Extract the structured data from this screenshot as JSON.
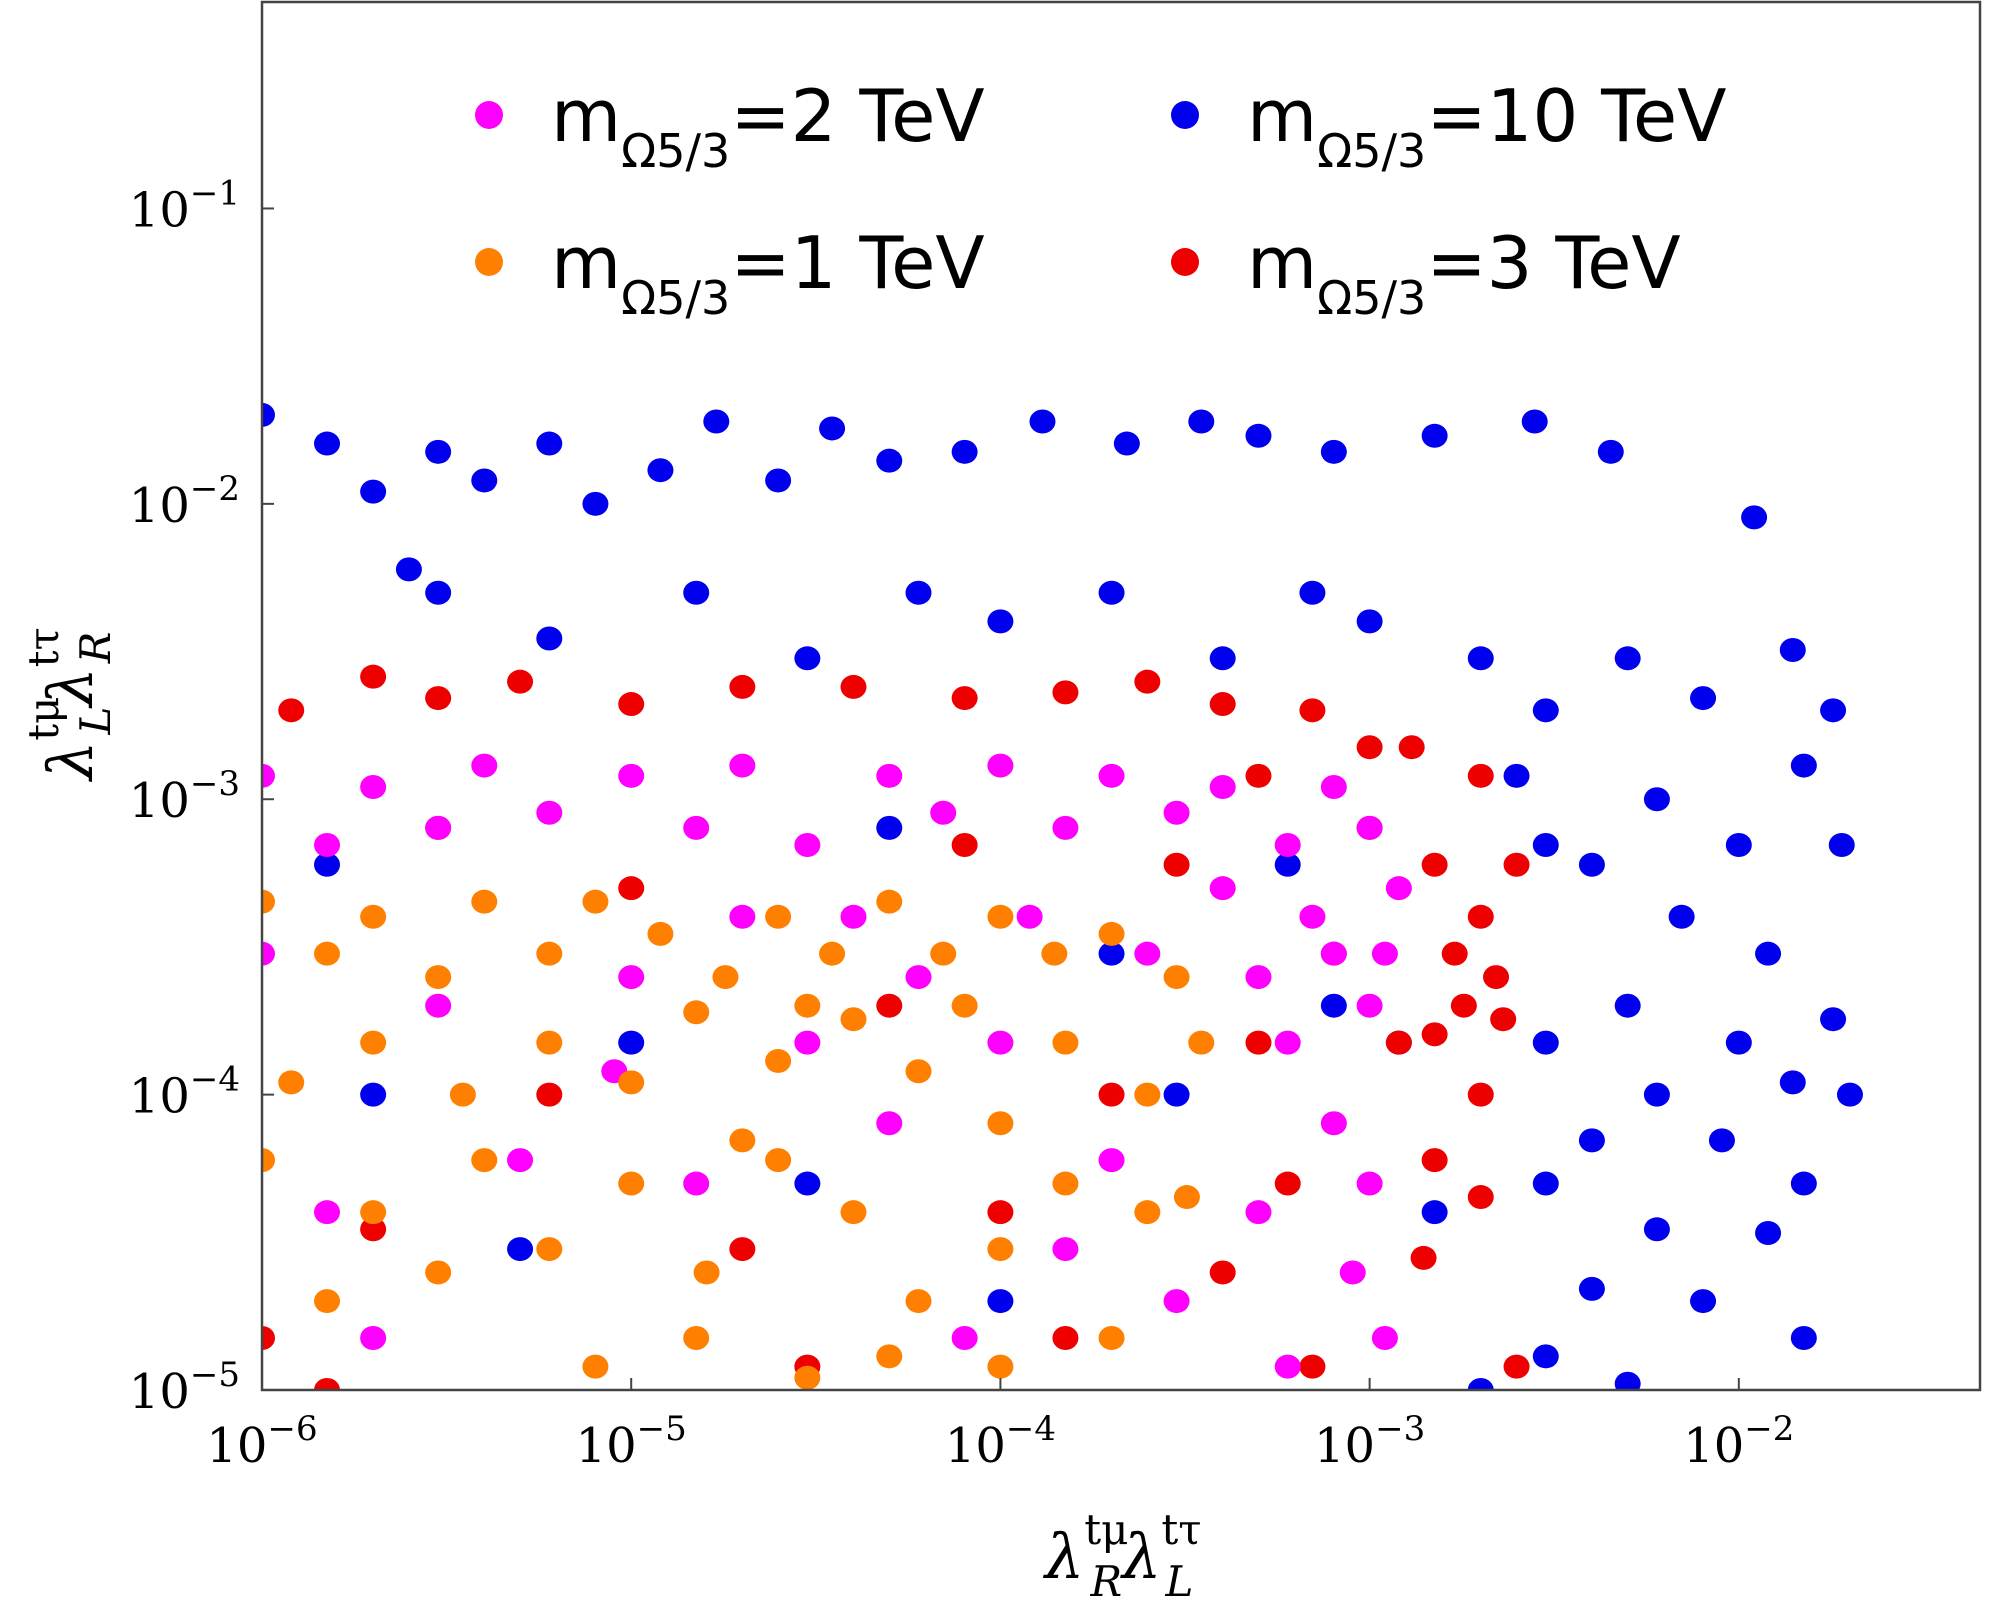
{
  "chart_data": {
    "type": "scatter",
    "xlabel": {
      "base": "λ",
      "sup1": "tμ",
      "sub1": "R",
      "base2": "λ",
      "sup2": "tτ",
      "sub2": "L"
    },
    "ylabel": {
      "base": "λ",
      "sup1": "tμ",
      "sub1": "L",
      "base2": "λ",
      "sup2": "tτ",
      "sub2": "R"
    },
    "xscale": "log",
    "yscale": "log",
    "xlim": [
      1e-06,
      0.045
    ],
    "ylim": [
      1e-05,
      0.5
    ],
    "xticks": [
      {
        "value": 1e-06,
        "base": "10",
        "exp": "−6"
      },
      {
        "value": 1e-05,
        "base": "10",
        "exp": "−5"
      },
      {
        "value": 0.0001,
        "base": "10",
        "exp": "−4"
      },
      {
        "value": 0.001,
        "base": "10",
        "exp": "−3"
      },
      {
        "value": 0.01,
        "base": "10",
        "exp": "−2"
      }
    ],
    "yticks": [
      {
        "value": 1e-05,
        "base": "10",
        "exp": "−5"
      },
      {
        "value": 0.0001,
        "base": "10",
        "exp": "−4"
      },
      {
        "value": 0.001,
        "base": "10",
        "exp": "−3"
      },
      {
        "value": 0.01,
        "base": "10",
        "exp": "−2"
      },
      {
        "value": 0.1,
        "base": "10",
        "exp": "−1"
      }
    ],
    "grid": false,
    "legend_placement": "top",
    "series": [
      {
        "name": "m_Ω5/3=10 TeV",
        "label_main": "m",
        "label_sub": "Ω5/3",
        "label_rest": "=10 TeV",
        "color": "#0000ee",
        "points": [
          [
            1e-06,
            0.02
          ],
          [
            1.5e-06,
            0.016
          ],
          [
            2e-06,
            0.011
          ],
          [
            3e-06,
            0.015
          ],
          [
            2.5e-06,
            0.006
          ],
          [
            4e-06,
            0.012
          ],
          [
            6e-06,
            0.016
          ],
          [
            8e-06,
            0.01
          ],
          [
            1.2e-05,
            0.013
          ],
          [
            1.7e-05,
            0.019
          ],
          [
            2.5e-05,
            0.012
          ],
          [
            3.5e-05,
            0.018
          ],
          [
            5e-05,
            0.014
          ],
          [
            8e-05,
            0.015
          ],
          [
            0.00013,
            0.019
          ],
          [
            0.00022,
            0.016
          ],
          [
            0.00035,
            0.019
          ],
          [
            0.0005,
            0.017
          ],
          [
            0.0008,
            0.015
          ],
          [
            0.0015,
            0.017
          ],
          [
            0.0028,
            0.019
          ],
          [
            0.0045,
            0.015
          ],
          [
            0.011,
            0.009
          ],
          [
            3e-06,
            0.005
          ],
          [
            6e-06,
            0.0035
          ],
          [
            1.5e-05,
            0.005
          ],
          [
            3e-05,
            0.003
          ],
          [
            6e-05,
            0.005
          ],
          [
            0.0001,
            0.004
          ],
          [
            0.0002,
            0.005
          ],
          [
            0.0004,
            0.003
          ],
          [
            0.0007,
            0.005
          ],
          [
            0.001,
            0.004
          ],
          [
            0.002,
            0.003
          ],
          [
            0.003,
            0.002
          ],
          [
            0.005,
            0.003
          ],
          [
            0.008,
            0.0022
          ],
          [
            0.014,
            0.0032
          ],
          [
            0.018,
            0.002
          ],
          [
            0.006,
            0.001
          ],
          [
            0.01,
            0.0007
          ],
          [
            0.015,
            0.0013
          ],
          [
            0.004,
            0.0006
          ],
          [
            0.019,
            0.0007
          ],
          [
            0.007,
            0.0004
          ],
          [
            0.012,
            0.0003
          ],
          [
            0.005,
            0.0002
          ],
          [
            0.01,
            0.00015
          ],
          [
            0.018,
            0.00018
          ],
          [
            0.003,
            0.00015
          ],
          [
            0.006,
            0.0001
          ],
          [
            0.014,
            0.00011
          ],
          [
            0.02,
            0.0001
          ],
          [
            0.004,
            7e-05
          ],
          [
            0.009,
            7e-05
          ],
          [
            0.015,
            5e-05
          ],
          [
            0.003,
            5e-05
          ],
          [
            0.006,
            3.5e-05
          ],
          [
            0.012,
            3.4e-05
          ],
          [
            0.004,
            2.2e-05
          ],
          [
            0.008,
            2e-05
          ],
          [
            0.015,
            1.5e-05
          ],
          [
            0.003,
            1.3e-05
          ],
          [
            0.005,
            1.05e-05
          ],
          [
            0.002,
            1e-05
          ],
          [
            0.0015,
            4e-05
          ],
          [
            0.0008,
            0.0002
          ],
          [
            0.0003,
            0.0001
          ],
          [
            0.0001,
            2e-05
          ],
          [
            3e-05,
            5e-05
          ],
          [
            1e-05,
            0.00015
          ],
          [
            5e-06,
            3e-05
          ],
          [
            2e-06,
            0.0001
          ],
          [
            1.5e-06,
            0.0006
          ],
          [
            5e-05,
            0.0008
          ],
          [
            0.0002,
            0.0003
          ],
          [
            0.0006,
            0.0006
          ],
          [
            0.0012,
            0.00015
          ],
          [
            0.0025,
            0.0012
          ],
          [
            0.003,
            0.0007
          ]
        ]
      },
      {
        "name": "m_Ω5/3=3 TeV",
        "label_main": "m",
        "label_sub": "Ω5/3",
        "label_rest": "=3 TeV",
        "color": "#ee0000",
        "points": [
          [
            1.2e-06,
            0.002
          ],
          [
            2e-06,
            0.0026
          ],
          [
            3e-06,
            0.0022
          ],
          [
            5e-06,
            0.0025
          ],
          [
            1e-05,
            0.0021
          ],
          [
            2e-05,
            0.0024
          ],
          [
            4e-05,
            0.0024
          ],
          [
            8e-05,
            0.0022
          ],
          [
            0.00015,
            0.0023
          ],
          [
            0.00025,
            0.0025
          ],
          [
            0.0004,
            0.0021
          ],
          [
            0.0007,
            0.002
          ],
          [
            0.0013,
            0.0015
          ],
          [
            0.002,
            0.0012
          ],
          [
            0.0025,
            0.0006
          ],
          [
            0.0015,
            0.0006
          ],
          [
            0.001,
            0.0008
          ],
          [
            0.002,
            0.0004
          ],
          [
            0.0018,
            0.0002
          ],
          [
            0.0023,
            0.00018
          ],
          [
            0.0015,
            0.00016
          ],
          [
            0.002,
            0.0001
          ],
          [
            0.0015,
            6e-05
          ],
          [
            0.002,
            4.5e-05
          ],
          [
            0.0014,
            2.8e-05
          ],
          [
            0.0025,
            1.2e-05
          ],
          [
            0.0012,
            0.00015
          ],
          [
            0.0008,
            0.0003
          ],
          [
            0.0005,
            0.00015
          ],
          [
            0.0006,
            5e-05
          ],
          [
            0.0004,
            2.5e-05
          ],
          [
            0.0002,
            0.0001
          ],
          [
            0.0001,
            4e-05
          ],
          [
            5e-05,
            0.0002
          ],
          [
            2e-05,
            3e-05
          ],
          [
            6e-06,
            0.0001
          ],
          [
            2e-06,
            3.5e-05
          ],
          [
            1e-06,
            1.5e-05
          ],
          [
            1.5e-06,
            1e-05
          ],
          [
            3e-05,
            1.2e-05
          ],
          [
            0.00015,
            1.5e-05
          ],
          [
            0.0007,
            1.2e-05
          ],
          [
            0.0003,
            0.0006
          ],
          [
            8e-05,
            0.0007
          ],
          [
            1e-05,
            0.0005
          ],
          [
            3e-06,
            0.0008
          ],
          [
            0.001,
            0.0015
          ],
          [
            0.0005,
            0.0012
          ],
          [
            0.0022,
            0.00025
          ],
          [
            0.0017,
            0.0003
          ]
        ]
      },
      {
        "name": "m_Ω5/3=2 TeV",
        "label_main": "m",
        "label_sub": "Ω5/3",
        "label_rest": "=2 TeV",
        "color": "#ff00ff",
        "points": [
          [
            1e-06,
            0.0012
          ],
          [
            1.5e-06,
            0.0007
          ],
          [
            2e-06,
            0.0011
          ],
          [
            3e-06,
            0.0008
          ],
          [
            4e-06,
            0.0013
          ],
          [
            6e-06,
            0.0009
          ],
          [
            1e-05,
            0.0012
          ],
          [
            1.5e-05,
            0.0008
          ],
          [
            2e-05,
            0.0013
          ],
          [
            3e-05,
            0.0007
          ],
          [
            5e-05,
            0.0012
          ],
          [
            7e-05,
            0.0009
          ],
          [
            0.0001,
            0.0013
          ],
          [
            0.00015,
            0.0008
          ],
          [
            0.0002,
            0.0012
          ],
          [
            0.0003,
            0.0009
          ],
          [
            0.0004,
            0.0011
          ],
          [
            0.0006,
            0.0007
          ],
          [
            0.0008,
            0.0011
          ],
          [
            0.001,
            0.0008
          ],
          [
            0.0012,
            0.0005
          ],
          [
            0.0008,
            0.0003
          ],
          [
            0.001,
            0.0002
          ],
          [
            0.0006,
            0.00015
          ],
          [
            0.0008,
            8e-05
          ],
          [
            0.001,
            5e-05
          ],
          [
            0.0009,
            2.5e-05
          ],
          [
            0.0011,
            1.5e-05
          ],
          [
            0.0006,
            1.2e-05
          ],
          [
            0.0005,
            4e-05
          ],
          [
            0.0003,
            2e-05
          ],
          [
            0.0002,
            6e-05
          ],
          [
            0.00015,
            3e-05
          ],
          [
            8e-05,
            1.5e-05
          ],
          [
            5e-05,
            8e-05
          ],
          [
            3e-05,
            0.00015
          ],
          [
            2e-05,
            0.0004
          ],
          [
            1e-05,
            0.00025
          ],
          [
            5e-06,
            6e-05
          ],
          [
            3e-06,
            0.0002
          ],
          [
            1.5e-06,
            4e-05
          ],
          [
            1e-06,
            0.0003
          ],
          [
            2e-06,
            1.5e-05
          ],
          [
            4e-05,
            0.0004
          ],
          [
            6e-05,
            0.00025
          ],
          [
            0.0001,
            0.00015
          ],
          [
            0.00012,
            0.0004
          ],
          [
            0.0004,
            0.0005
          ],
          [
            0.0005,
            0.00025
          ],
          [
            0.0007,
            0.0004
          ],
          [
            0.0011,
            0.0003
          ],
          [
            0.00025,
            0.0003
          ],
          [
            1.5e-05,
            5e-05
          ],
          [
            9e-06,
            0.00012
          ]
        ]
      },
      {
        "name": "m_Ω5/3=1 TeV",
        "label_main": "m",
        "label_sub": "Ω5/3",
        "label_rest": "=1 TeV",
        "color": "#ff8000",
        "points": [
          [
            1e-06,
            0.00045
          ],
          [
            1.5e-06,
            0.0003
          ],
          [
            2e-06,
            0.0004
          ],
          [
            3e-06,
            0.00025
          ],
          [
            4e-06,
            0.00045
          ],
          [
            6e-06,
            0.0003
          ],
          [
            8e-06,
            0.00045
          ],
          [
            1.2e-05,
            0.00035
          ],
          [
            1.8e-05,
            0.00025
          ],
          [
            2.5e-05,
            0.0004
          ],
          [
            3.5e-05,
            0.0003
          ],
          [
            5e-05,
            0.00045
          ],
          [
            7e-05,
            0.0003
          ],
          [
            0.0001,
            0.0004
          ],
          [
            0.00014,
            0.0003
          ],
          [
            0.0002,
            0.00035
          ],
          [
            0.0003,
            0.00025
          ],
          [
            0.00035,
            0.00015
          ],
          [
            0.00025,
            0.0001
          ],
          [
            0.00015,
            0.00015
          ],
          [
            0.0001,
            8e-05
          ],
          [
            6e-05,
            0.00012
          ],
          [
            4e-05,
            0.00018
          ],
          [
            2.5e-05,
            0.00013
          ],
          [
            1.5e-05,
            0.00019
          ],
          [
            1e-05,
            0.00011
          ],
          [
            6e-06,
            0.00015
          ],
          [
            3.5e-06,
            0.0001
          ],
          [
            2e-06,
            0.00015
          ],
          [
            1.2e-06,
            0.00011
          ],
          [
            1e-06,
            6e-05
          ],
          [
            2e-06,
            4e-05
          ],
          [
            4e-06,
            6e-05
          ],
          [
            6e-06,
            3e-05
          ],
          [
            1e-05,
            5e-05
          ],
          [
            1.6e-05,
            2.5e-05
          ],
          [
            2.5e-05,
            6e-05
          ],
          [
            4e-05,
            4e-05
          ],
          [
            6e-05,
            2e-05
          ],
          [
            0.0001,
            3e-05
          ],
          [
            0.00015,
            5e-05
          ],
          [
            0.00025,
            4e-05
          ],
          [
            0.00032,
            4.5e-05
          ],
          [
            0.0002,
            1.5e-05
          ],
          [
            0.0001,
            1.2e-05
          ],
          [
            5e-05,
            1.3e-05
          ],
          [
            3e-05,
            1.1e-05
          ],
          [
            1.5e-05,
            1.5e-05
          ],
          [
            8e-06,
            1.2e-05
          ],
          [
            3e-06,
            2.5e-05
          ],
          [
            1.5e-06,
            2e-05
          ],
          [
            2e-05,
            7e-05
          ],
          [
            8e-05,
            0.0002
          ],
          [
            3e-05,
            0.0002
          ]
        ]
      }
    ],
    "legend_order": [
      2,
      0,
      3,
      1
    ]
  }
}
